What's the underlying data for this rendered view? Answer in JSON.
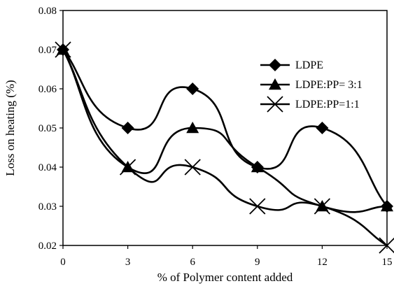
{
  "chart_data": {
    "type": "line",
    "title": "",
    "xlabel": "% of Polymer content added",
    "ylabel": "Loss  on heating (%)",
    "x": [
      0,
      3,
      6,
      9,
      12,
      15
    ],
    "x_ticks": [
      "0",
      "3",
      "6",
      "9",
      "12",
      "15"
    ],
    "y_ticks": [
      "0.02",
      "0.03",
      "0.04",
      "0.05",
      "0.06",
      "0.07",
      "0.08"
    ],
    "xlim": [
      0,
      15
    ],
    "ylim": [
      0.02,
      0.08
    ],
    "grid": false,
    "smooth": true,
    "legend_position": "top-right",
    "series": [
      {
        "name": "LDPE",
        "marker": "diamond",
        "color": "#000000",
        "values": [
          0.07,
          0.05,
          0.06,
          0.04,
          0.05,
          0.03
        ]
      },
      {
        "name": "LDPE:PP= 3:1",
        "marker": "triangle",
        "color": "#000000",
        "values": [
          0.07,
          0.04,
          0.05,
          0.04,
          0.03,
          0.03
        ]
      },
      {
        "name": "LDPE:PP=1:1",
        "marker": "x",
        "color": "#000000",
        "values": [
          0.07,
          0.04,
          0.04,
          0.03,
          0.03,
          0.02
        ]
      }
    ]
  }
}
